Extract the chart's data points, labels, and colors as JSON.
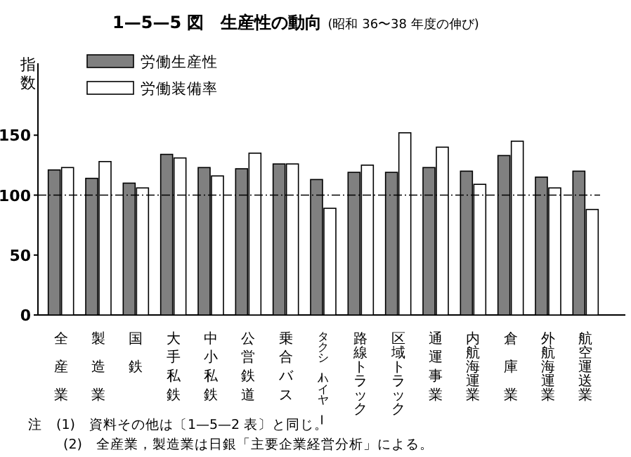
{
  "chart_data": {
    "type": "bar",
    "title": "1—5—5 図　生産性の動向",
    "subtitle": "(昭和 36〜38 年度の伸び)",
    "ylabel": "指数",
    "categories": [
      "全産業",
      "製造業",
      "国鉄",
      "大手私鉄",
      "中小私鉄",
      "公営鉄道",
      "乗合バス",
      "タクシーハイヤー",
      "路線トラック",
      "区域トラック",
      "通運事業",
      "内航海運業",
      "倉庫業",
      "外航海運業",
      "航空運送業"
    ],
    "series": [
      {
        "name": "労働生産性",
        "color": "#808080",
        "values": [
          121,
          114,
          110,
          134,
          123,
          122,
          126,
          113,
          119,
          119,
          123,
          120,
          133,
          115,
          120
        ]
      },
      {
        "name": "労働装備率",
        "color": "#ffffff",
        "values": [
          123,
          128,
          106,
          131,
          116,
          135,
          126,
          89,
          125,
          152,
          140,
          109,
          145,
          106,
          88
        ]
      }
    ],
    "ylim": [
      0,
      210
    ],
    "yticks": [
      0,
      50,
      100,
      150
    ],
    "ref_lines": [
      {
        "axis": "y",
        "value": 100,
        "line_style": "dashed"
      }
    ],
    "legend": "top left",
    "grid": false,
    "annotations": [
      "注　(1)　資料その他は〔1—5—2 表〕と同じ。",
      "(2)　全産業，製造業は日銀「主要企業経営分析」による。"
    ]
  }
}
